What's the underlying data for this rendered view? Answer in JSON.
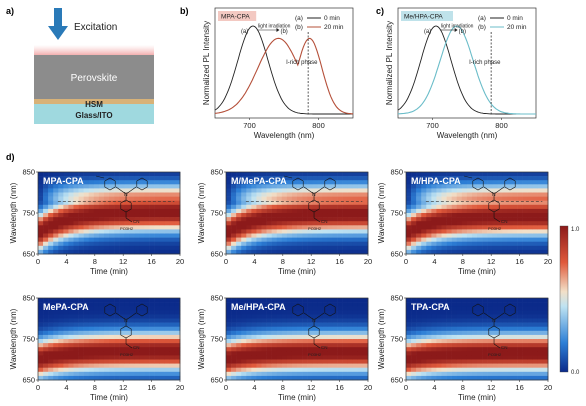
{
  "panel_labels": [
    "a)",
    "b)",
    "c)",
    "d)"
  ],
  "schematic": {
    "excitation_label": "Excitation",
    "layers": [
      "Perovskite",
      "HSM",
      "Glass/ITO"
    ],
    "colors": {
      "arrow": "#2a7ab8",
      "perovskite": "#8c8c8c",
      "hsm": "#d8b278",
      "glass": "#9fd9df",
      "glow": "#f2b5b5"
    }
  },
  "spectra": {
    "ylabel": "Normalized PL Intensity",
    "xlabel": "Wavelength (nm)",
    "x_ticks": [
      700,
      800
    ],
    "xlim": [
      650,
      850
    ],
    "legend": [
      {
        "marker": "(a)",
        "label": "0 min"
      },
      {
        "marker": "(b)",
        "label": "20 min"
      }
    ],
    "arrow_label": "light irradiation",
    "phase_label": "I-rich phase",
    "phase_wavelength": 785,
    "panels": [
      {
        "title": "MPA-CPA",
        "title_bg": "#f3c9c2",
        "color_b": "#b5503a",
        "peak_a": 705,
        "peak_b": 742,
        "peak_b2": 787
      },
      {
        "title": "Me/HPA-CPA",
        "title_bg": "#bfe2ea",
        "color_b": "#6bbdc9",
        "peak_a": 705,
        "peak_b": 735,
        "peak_b2": 0
      }
    ]
  },
  "heatmaps": {
    "ylabel": "Wavelength (nm)",
    "xlabel": "Time (min)",
    "y_ticks": [
      650,
      750,
      850
    ],
    "x_ticks": [
      0,
      4,
      8,
      12,
      16,
      20
    ],
    "colorbar_ticks": [
      "1.0",
      "0.0"
    ],
    "panels": [
      {
        "title": "MPA-CPA",
        "start": 700,
        "shift": 52,
        "split": true
      },
      {
        "title": "M/MePA-CPA",
        "start": 700,
        "shift": 48,
        "split": true
      },
      {
        "title": "M/HPA-CPA",
        "start": 700,
        "shift": 42,
        "split": true
      },
      {
        "title": "MePA-CPA",
        "start": 700,
        "shift": 20,
        "split": false
      },
      {
        "title": "Me/HPA-CPA",
        "start": 700,
        "shift": 18,
        "split": false
      },
      {
        "title": "TPA-CPA",
        "start": 700,
        "shift": 16,
        "split": false
      }
    ],
    "molecule_labels": {
      "cn": "CN",
      "acid": "PO3H2"
    }
  },
  "chart_data": [
    {
      "type": "line",
      "title": "MPA-CPA",
      "xlabel": "Wavelength (nm)",
      "ylabel": "Normalized PL Intensity",
      "xlim": [
        650,
        850
      ],
      "series": [
        {
          "name": "0 min",
          "x": [
            650,
            670,
            690,
            700,
            705,
            710,
            720,
            740,
            760,
            780,
            800,
            850
          ],
          "y": [
            0.02,
            0.15,
            0.65,
            0.92,
            1.0,
            0.96,
            0.75,
            0.3,
            0.1,
            0.03,
            0.01,
            0
          ]
        },
        {
          "name": "20 min",
          "x": [
            650,
            680,
            700,
            720,
            740,
            760,
            770,
            785,
            800,
            820,
            850
          ],
          "y": [
            0.0,
            0.05,
            0.25,
            0.7,
            0.88,
            0.8,
            0.78,
            0.85,
            0.55,
            0.12,
            0.01
          ]
        }
      ]
    },
    {
      "type": "line",
      "title": "Me/HPA-CPA",
      "xlabel": "Wavelength (nm)",
      "ylabel": "Normalized PL Intensity",
      "xlim": [
        650,
        850
      ],
      "series": [
        {
          "name": "0 min",
          "x": [
            650,
            670,
            690,
            705,
            720,
            740,
            760,
            780,
            800,
            850
          ],
          "y": [
            0.02,
            0.15,
            0.65,
            1.0,
            0.75,
            0.3,
            0.1,
            0.03,
            0.01,
            0
          ]
        },
        {
          "name": "20 min",
          "x": [
            650,
            680,
            700,
            720,
            735,
            750,
            770,
            790,
            810,
            850
          ],
          "y": [
            0.0,
            0.06,
            0.3,
            0.75,
            1.0,
            0.85,
            0.45,
            0.15,
            0.04,
            0
          ]
        }
      ]
    }
  ]
}
